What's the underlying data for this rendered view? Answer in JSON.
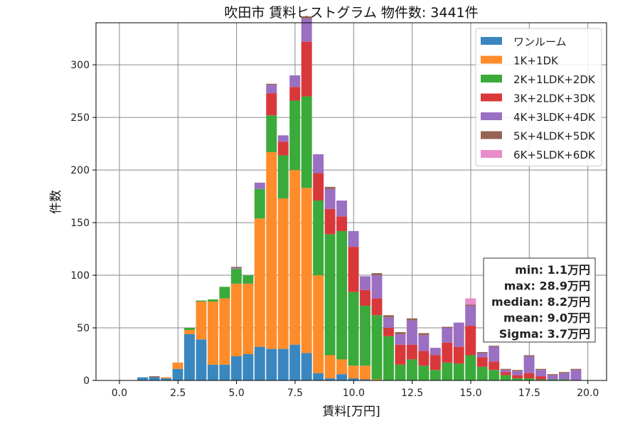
{
  "chart_data": {
    "type": "bar",
    "stacked": true,
    "title": "吹田市 賃料ヒストグラム 物件数: 3441件",
    "xlabel": "賃料[万円]",
    "ylabel": "件数",
    "xlim": [
      -1.0,
      20.8
    ],
    "ylim": [
      0,
      340
    ],
    "grid": true,
    "legend_position": "top-right",
    "x_ticks": [
      0.0,
      2.5,
      5.0,
      7.5,
      10.0,
      12.5,
      15.0,
      17.5,
      20.0
    ],
    "x_tick_labels": [
      "0.0",
      "2.5",
      "5.0",
      "7.5",
      "10.0",
      "12.5",
      "15.0",
      "17.5",
      "20.0"
    ],
    "y_ticks": [
      0,
      50,
      100,
      150,
      200,
      250,
      300
    ],
    "y_tick_labels": [
      "0",
      "50",
      "100",
      "150",
      "200",
      "250",
      "300"
    ],
    "bin_width": 0.5,
    "x": [
      1.0,
      1.5,
      2.0,
      2.5,
      3.0,
      3.5,
      4.0,
      4.5,
      5.0,
      5.5,
      6.0,
      6.5,
      7.0,
      7.5,
      8.0,
      8.5,
      9.0,
      9.5,
      10.0,
      10.5,
      11.0,
      11.5,
      12.0,
      12.5,
      13.0,
      13.5,
      14.0,
      14.5,
      15.0,
      15.5,
      16.0,
      16.5,
      17.0,
      17.5,
      18.0,
      18.5,
      19.0,
      19.5
    ],
    "series": [
      {
        "name": "ワンルーム",
        "color": "#3a87bf",
        "values": [
          3,
          3,
          2,
          11,
          44,
          39,
          15,
          15,
          23,
          25,
          32,
          30,
          30,
          34,
          26,
          7,
          2,
          6,
          2,
          1,
          0,
          0,
          0,
          0,
          0,
          0,
          0,
          0,
          0,
          0,
          0,
          0,
          0,
          0,
          0,
          0,
          0,
          0
        ]
      },
      {
        "name": "1K+1DK",
        "color": "#ff8c2a",
        "values": [
          0,
          0,
          1,
          6,
          4,
          36,
          60,
          63,
          69,
          67,
          122,
          187,
          143,
          166,
          157,
          93,
          22,
          14,
          12,
          13,
          1,
          0,
          0,
          0,
          0,
          0,
          0,
          0,
          0,
          0,
          0,
          0,
          0,
          0,
          0,
          0,
          0,
          0
        ]
      },
      {
        "name": "2K+1LDK+2DK",
        "color": "#3aaa3a",
        "values": [
          0,
          0,
          0,
          0,
          2,
          1,
          2,
          11,
          14,
          8,
          28,
          35,
          41,
          66,
          87,
          71,
          115,
          122,
          70,
          57,
          61,
          42,
          15,
          20,
          14,
          10,
          17,
          16,
          24,
          13,
          10,
          5,
          2,
          2,
          1,
          1,
          1,
          0
        ]
      },
      {
        "name": "3K+2LDK+3DK",
        "color": "#d9383a",
        "values": [
          0,
          0,
          0,
          0,
          0,
          0,
          0,
          0,
          0,
          0,
          0,
          21,
          13,
          13,
          52,
          26,
          24,
          14,
          43,
          15,
          16,
          8,
          19,
          14,
          14,
          14,
          19,
          16,
          28,
          9,
          8,
          3,
          3,
          5,
          3,
          0,
          0,
          0
        ]
      },
      {
        "name": "4K+3LDK+4DK",
        "color": "#9b6fc2",
        "values": [
          0,
          0,
          0,
          0,
          0,
          0,
          0,
          0,
          1,
          0,
          6,
          8,
          6,
          11,
          22,
          18,
          19,
          15,
          15,
          13,
          22,
          10,
          10,
          23,
          15,
          7,
          14,
          23,
          19,
          4,
          14,
          2,
          4,
          16,
          6,
          4,
          6,
          10
        ]
      },
      {
        "name": "5K+4LDK+5DK",
        "color": "#966452",
        "values": [
          0,
          1,
          0,
          0,
          0,
          0,
          0,
          0,
          1,
          0,
          0,
          1,
          0,
          0,
          2,
          0,
          2,
          0,
          0,
          0,
          2,
          2,
          2,
          2,
          2,
          0,
          1,
          0,
          1,
          1,
          1,
          1,
          1,
          1,
          1,
          1,
          1,
          1
        ]
      },
      {
        "name": "6K+5LDK+6DK",
        "color": "#e88dc9",
        "values": [
          0,
          0,
          0,
          0,
          0,
          0,
          0,
          0,
          0,
          0,
          0,
          0,
          0,
          0,
          0,
          0,
          0,
          0,
          0,
          0,
          0,
          0,
          0,
          0,
          0,
          0,
          0,
          0,
          6,
          0,
          0,
          0,
          0,
          0,
          0,
          0,
          0,
          0
        ]
      }
    ],
    "stats": [
      "min: 1.1万円",
      "max: 28.9万円",
      "median: 8.2万円",
      "mean: 9.0万円",
      "Sigma: 3.7万円"
    ]
  }
}
